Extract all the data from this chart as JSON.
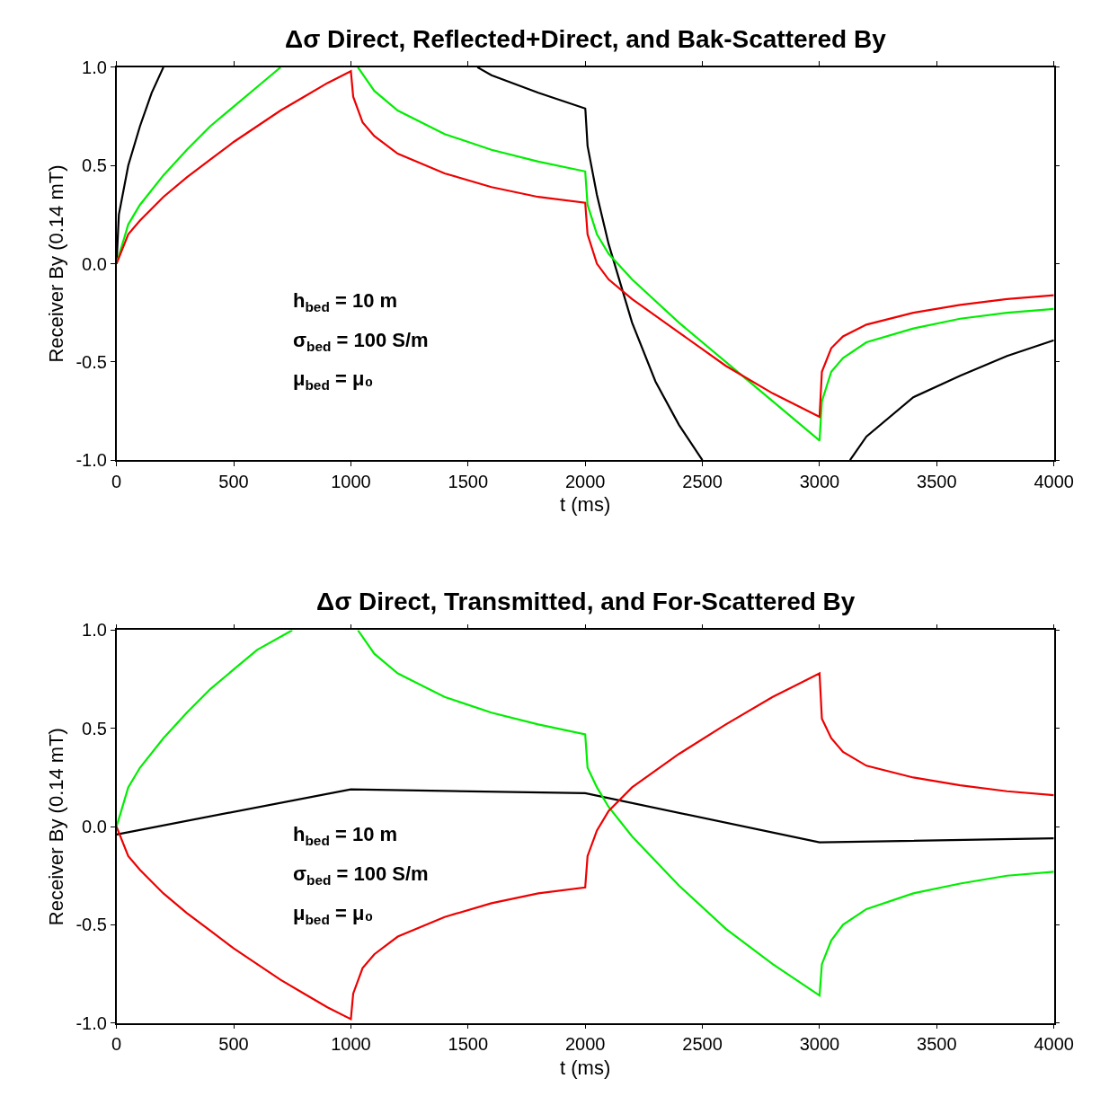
{
  "chart_data": [
    {
      "type": "line",
      "title": "Δσ Direct, Reflected+Direct, and Bak-Scattered By",
      "xlabel": "t (ms)",
      "ylabel": "Receiver By (0.14 mT)",
      "xlim": [
        0,
        4000
      ],
      "ylim": [
        -1.0,
        1.0
      ],
      "xticks": [
        0,
        500,
        1000,
        1500,
        2000,
        2500,
        3000,
        3500,
        4000
      ],
      "yticks": [
        {
          "value": -1.0,
          "label": "-1.0"
        },
        {
          "value": -0.5,
          "label": "-0.5"
        },
        {
          "value": 0.0,
          "label": "0.0"
        },
        {
          "value": 0.5,
          "label": "0.5"
        },
        {
          "value": 1.0,
          "label": "1.0"
        }
      ],
      "line_style": "solid",
      "marker": "none",
      "annotations": [
        "h$_{bed}$ = 10 m",
        "σ$_{bed}$ = 100 S/m",
        "μ$_{bed}$ = μ₀"
      ],
      "series": [
        {
          "color": "#000000",
          "x": [
            0,
            10,
            50,
            100,
            150,
            200,
            800,
            1540,
            1600,
            1800,
            2000,
            2001,
            2010,
            2050,
            2100,
            2150,
            2200,
            2300,
            2400,
            2500,
            2800,
            3130,
            3200,
            3400,
            3600,
            3800,
            4000
          ],
          "values": [
            0,
            0.25,
            0.5,
            0.7,
            0.87,
            1.0,
            null,
            1.0,
            0.96,
            0.87,
            0.79,
            0.78,
            0.6,
            0.35,
            0.1,
            -0.1,
            -0.3,
            -0.6,
            -0.82,
            -1.0,
            null,
            -1.0,
            -0.88,
            -0.68,
            -0.57,
            -0.47,
            -0.39
          ]
        },
        {
          "color": "#00ee00",
          "x": [
            0,
            50,
            100,
            200,
            300,
            400,
            500,
            600,
            700,
            850,
            1030,
            1100,
            1200,
            1400,
            1600,
            1800,
            2000,
            2010,
            2050,
            2100,
            2200,
            2400,
            2600,
            2800,
            3000,
            3010,
            3050,
            3100,
            3200,
            3400,
            3600,
            3800,
            4000
          ],
          "values": [
            0,
            0.2,
            0.3,
            0.45,
            0.58,
            0.7,
            0.8,
            0.9,
            1.0,
            null,
            1.0,
            0.88,
            0.78,
            0.66,
            0.58,
            0.52,
            0.47,
            0.3,
            0.15,
            0.05,
            -0.08,
            -0.3,
            -0.5,
            -0.7,
            -0.9,
            -0.7,
            -0.55,
            -0.48,
            -0.4,
            -0.33,
            -0.28,
            -0.25,
            -0.23
          ]
        },
        {
          "color": "#ee0000",
          "x": [
            0,
            50,
            100,
            200,
            300,
            400,
            500,
            600,
            700,
            800,
            900,
            1000,
            1010,
            1050,
            1100,
            1200,
            1400,
            1600,
            1800,
            2000,
            2010,
            2050,
            2100,
            2200,
            2400,
            2600,
            2800,
            3000,
            3010,
            3050,
            3100,
            3200,
            3400,
            3600,
            3800,
            4000
          ],
          "values": [
            0,
            0.15,
            0.22,
            0.34,
            0.44,
            0.53,
            0.62,
            0.7,
            0.78,
            0.85,
            0.92,
            0.98,
            0.85,
            0.72,
            0.65,
            0.56,
            0.46,
            0.39,
            0.34,
            0.31,
            0.15,
            0.0,
            -0.08,
            -0.18,
            -0.35,
            -0.52,
            -0.66,
            -0.78,
            -0.55,
            -0.43,
            -0.37,
            -0.31,
            -0.25,
            -0.21,
            -0.18,
            -0.16
          ]
        }
      ]
    },
    {
      "type": "line",
      "title": "Δσ Direct, Transmitted, and For-Scattered By",
      "xlabel": "t (ms)",
      "ylabel": "Receiver By (0.14 mT)",
      "xlim": [
        0,
        4000
      ],
      "ylim": [
        -1.0,
        1.0
      ],
      "xticks": [
        0,
        500,
        1000,
        1500,
        2000,
        2500,
        3000,
        3500,
        4000
      ],
      "yticks": [
        {
          "value": -1.0,
          "label": "-1.0"
        },
        {
          "value": -0.5,
          "label": "-0.5"
        },
        {
          "value": 0.0,
          "label": "0.0"
        },
        {
          "value": 0.5,
          "label": "0.5"
        },
        {
          "value": 1.0,
          "label": "1.0"
        }
      ],
      "line_style": "solid",
      "marker": "none",
      "annotations": [
        "h$_{bed}$ = 10 m",
        "σ$_{bed}$ = 100 S/m",
        "μ$_{bed}$ = μ₀"
      ],
      "series": [
        {
          "color": "#000000",
          "x": [
            0,
            1000,
            2000,
            3000,
            4000
          ],
          "values": [
            -0.04,
            0.19,
            0.17,
            -0.08,
            -0.06
          ]
        },
        {
          "color": "#00ee00",
          "x": [
            0,
            50,
            100,
            200,
            300,
            400,
            500,
            600,
            750,
            900,
            1030,
            1100,
            1200,
            1400,
            1600,
            1800,
            2000,
            2010,
            2050,
            2100,
            2200,
            2400,
            2600,
            2800,
            3000,
            3010,
            3050,
            3100,
            3200,
            3400,
            3600,
            3800,
            4000
          ],
          "values": [
            0,
            0.2,
            0.3,
            0.45,
            0.58,
            0.7,
            0.8,
            0.9,
            1.0,
            null,
            1.0,
            0.88,
            0.78,
            0.66,
            0.58,
            0.52,
            0.47,
            0.3,
            0.2,
            0.1,
            -0.05,
            -0.3,
            -0.52,
            -0.7,
            -0.86,
            -0.7,
            -0.58,
            -0.5,
            -0.42,
            -0.34,
            -0.29,
            -0.25,
            -0.23
          ]
        },
        {
          "color": "#ee0000",
          "x": [
            0,
            50,
            100,
            200,
            300,
            400,
            500,
            600,
            700,
            800,
            900,
            1000,
            1010,
            1050,
            1100,
            1200,
            1400,
            1600,
            1800,
            2000,
            2010,
            2050,
            2100,
            2200,
            2400,
            2600,
            2800,
            3000,
            3010,
            3050,
            3100,
            3200,
            3400,
            3600,
            3800,
            4000
          ],
          "values": [
            0,
            -0.15,
            -0.22,
            -0.34,
            -0.44,
            -0.53,
            -0.62,
            -0.7,
            -0.78,
            -0.85,
            -0.92,
            -0.98,
            -0.85,
            -0.72,
            -0.65,
            -0.56,
            -0.46,
            -0.39,
            -0.34,
            -0.31,
            -0.15,
            -0.02,
            0.08,
            0.2,
            0.37,
            0.52,
            0.66,
            0.78,
            0.55,
            0.45,
            0.38,
            0.31,
            0.25,
            0.21,
            0.18,
            0.16
          ]
        }
      ]
    }
  ]
}
